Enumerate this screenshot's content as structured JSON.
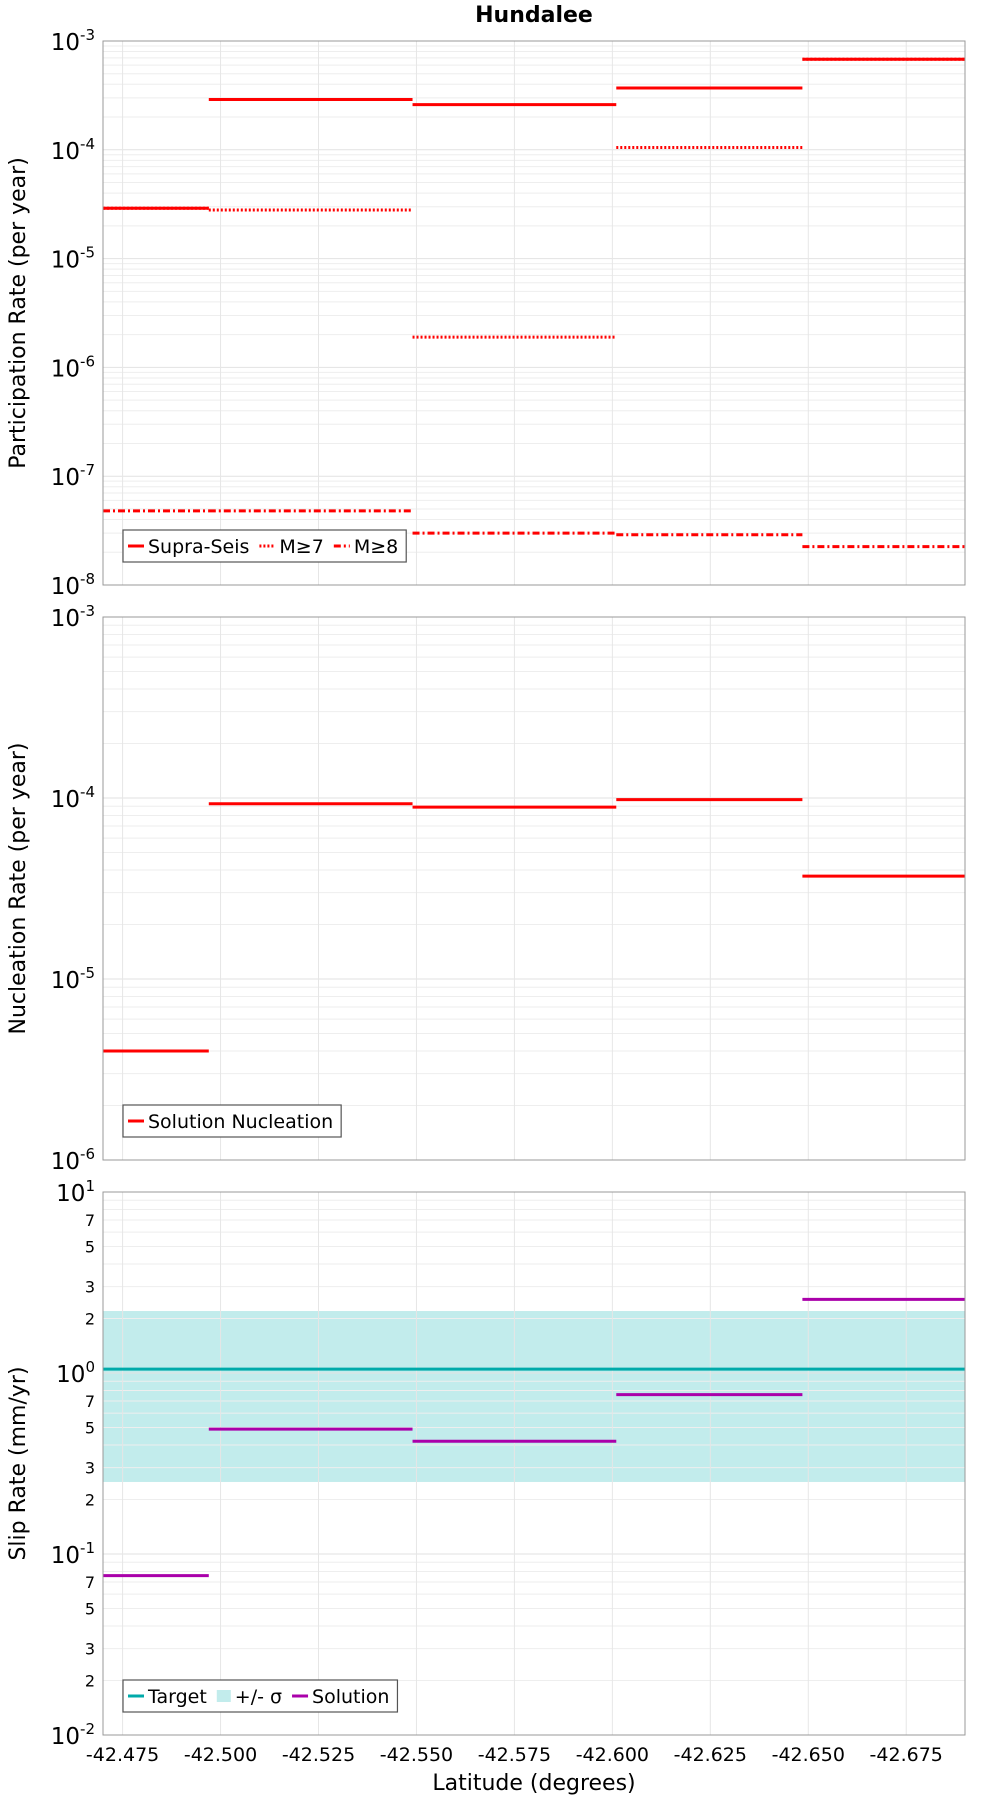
{
  "chart_data": {
    "title": "Hundalee",
    "type": "line",
    "xlabel": "Latitude (degrees)",
    "xlim": [
      -42.47,
      -42.69
    ],
    "xticks": [
      "-42.475",
      "-42.500",
      "-42.525",
      "-42.550",
      "-42.575",
      "-42.600",
      "-42.625",
      "-42.650",
      "-42.675"
    ],
    "xtick_values": [
      -42.475,
      -42.5,
      -42.525,
      -42.55,
      -42.575,
      -42.6,
      -42.625,
      -42.65,
      -42.675
    ],
    "panels": [
      {
        "ylabel": "Participation Rate (per year)",
        "yscale": "log",
        "ylim_exp": [
          -8,
          -3
        ],
        "grid": true,
        "legend": "bottom-left",
        "series": [
          {
            "name": "Supra-Seis",
            "color": "#ff0000",
            "style": "solid",
            "segments": [
              {
                "x0": -42.47,
                "x1": -42.497,
                "y": 2.9e-05
              },
              {
                "x0": -42.497,
                "x1": -42.549,
                "y": 0.00029
              },
              {
                "x0": -42.549,
                "x1": -42.601,
                "y": 0.00026
              },
              {
                "x0": -42.601,
                "x1": -42.6485,
                "y": 0.00037
              },
              {
                "x0": -42.6485,
                "x1": -42.69,
                "y": 0.00068
              }
            ]
          },
          {
            "name": "M≥7",
            "color": "#ff0000",
            "style": "dotted",
            "segments": [
              {
                "x0": -42.47,
                "x1": -42.497,
                "y": 2.9e-05
              },
              {
                "x0": -42.497,
                "x1": -42.549,
                "y": 2.8e-05
              },
              {
                "x0": -42.549,
                "x1": -42.601,
                "y": 1.9e-06
              },
              {
                "x0": -42.601,
                "x1": -42.6485,
                "y": 0.000105
              },
              {
                "x0": -42.6485,
                "x1": -42.69,
                "y": 0.00068
              }
            ]
          },
          {
            "name": "M≥8",
            "color": "#ff0000",
            "style": "dashdot",
            "segments": [
              {
                "x0": -42.47,
                "x1": -42.497,
                "y": 4.8e-08
              },
              {
                "x0": -42.497,
                "x1": -42.549,
                "y": 4.8e-08
              },
              {
                "x0": -42.549,
                "x1": -42.601,
                "y": 3e-08
              },
              {
                "x0": -42.601,
                "x1": -42.6485,
                "y": 2.9e-08
              },
              {
                "x0": -42.6485,
                "x1": -42.69,
                "y": 2.25e-08
              }
            ]
          }
        ]
      },
      {
        "ylabel": "Nucleation Rate (per year)",
        "yscale": "log",
        "ylim_exp": [
          -6,
          -3
        ],
        "grid": true,
        "legend": "bottom-left",
        "series": [
          {
            "name": "Solution Nucleation",
            "color": "#ff0000",
            "style": "solid",
            "segments": [
              {
                "x0": -42.47,
                "x1": -42.497,
                "y": 4e-06
              },
              {
                "x0": -42.497,
                "x1": -42.549,
                "y": 9.3e-05
              },
              {
                "x0": -42.549,
                "x1": -42.601,
                "y": 8.9e-05
              },
              {
                "x0": -42.601,
                "x1": -42.6485,
                "y": 9.8e-05
              },
              {
                "x0": -42.6485,
                "x1": -42.69,
                "y": 3.7e-05
              }
            ]
          }
        ]
      },
      {
        "ylabel": "Slip Rate (mm/yr)",
        "yscale": "log",
        "ylim_exp": [
          -2,
          1
        ],
        "minor_labels": [
          "2",
          "3",
          "5",
          "7"
        ],
        "grid": true,
        "legend": "bottom-left",
        "band": {
          "name": "+/- σ",
          "color": "#c2ecec",
          "low": 0.25,
          "high": 2.2
        },
        "series": [
          {
            "name": "Target",
            "color": "#00aaaa",
            "style": "solid",
            "segments": [
              {
                "x0": -42.47,
                "x1": -42.69,
                "y": 1.05
              }
            ]
          },
          {
            "name": "Solution",
            "color": "#aa00aa",
            "style": "solid",
            "segments": [
              {
                "x0": -42.47,
                "x1": -42.497,
                "y": 0.076
              },
              {
                "x0": -42.497,
                "x1": -42.549,
                "y": 0.49
              },
              {
                "x0": -42.549,
                "x1": -42.601,
                "y": 0.42
              },
              {
                "x0": -42.601,
                "x1": -42.6485,
                "y": 0.76
              },
              {
                "x0": -42.6485,
                "x1": -42.69,
                "y": 2.55
              }
            ]
          }
        ]
      }
    ]
  }
}
